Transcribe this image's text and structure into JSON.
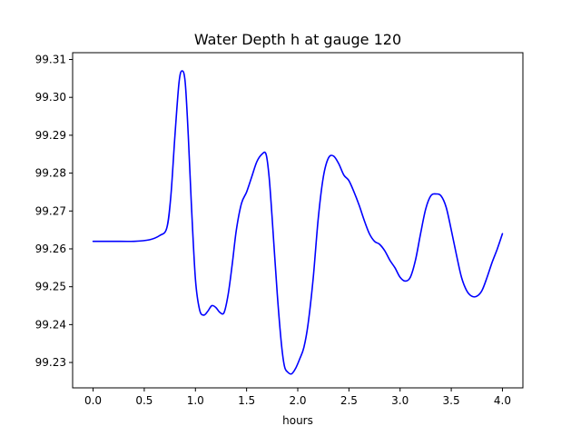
{
  "chart_data": {
    "type": "line",
    "title": "Water Depth h at gauge 120",
    "xlabel": "hours",
    "ylabel": "",
    "xlim": [
      -0.2,
      4.2
    ],
    "ylim": [
      99.2233,
      99.3118
    ],
    "xticks": [
      0.0,
      0.5,
      1.0,
      1.5,
      2.0,
      2.5,
      3.0,
      3.5,
      4.0
    ],
    "xtick_labels": [
      "0.0",
      "0.5",
      "1.0",
      "1.5",
      "2.0",
      "2.5",
      "3.0",
      "3.5",
      "4.0"
    ],
    "yticks": [
      99.23,
      99.24,
      99.25,
      99.26,
      99.27,
      99.28,
      99.29,
      99.3,
      99.31
    ],
    "ytick_labels": [
      "99.23",
      "99.24",
      "99.25",
      "99.26",
      "99.27",
      "99.28",
      "99.29",
      "99.30",
      "99.31"
    ],
    "grid": false,
    "color": "#0000ff",
    "series": [
      {
        "name": "",
        "x": [
          0.0,
          0.2,
          0.4,
          0.55,
          0.65,
          0.72,
          0.76,
          0.8,
          0.84,
          0.87,
          0.9,
          0.93,
          0.96,
          1.0,
          1.04,
          1.08,
          1.12,
          1.16,
          1.2,
          1.24,
          1.28,
          1.32,
          1.36,
          1.4,
          1.45,
          1.5,
          1.55,
          1.6,
          1.65,
          1.69,
          1.72,
          1.75,
          1.8,
          1.84,
          1.87,
          1.9,
          1.94,
          1.98,
          2.02,
          2.06,
          2.1,
          2.15,
          2.2,
          2.25,
          2.3,
          2.35,
          2.4,
          2.45,
          2.5,
          2.55,
          2.6,
          2.65,
          2.7,
          2.75,
          2.8,
          2.85,
          2.9,
          2.95,
          3.0,
          3.05,
          3.1,
          3.15,
          3.2,
          3.25,
          3.3,
          3.35,
          3.4,
          3.45,
          3.5,
          3.55,
          3.6,
          3.65,
          3.7,
          3.75,
          3.8,
          3.85,
          3.9,
          3.95,
          4.0
        ],
        "y": [
          99.262,
          99.262,
          99.262,
          99.2624,
          99.2635,
          99.2655,
          99.274,
          99.29,
          99.304,
          99.307,
          99.304,
          99.29,
          99.272,
          99.252,
          99.244,
          99.2425,
          99.2435,
          99.245,
          99.2445,
          99.2432,
          99.2432,
          99.248,
          99.256,
          99.265,
          99.272,
          99.275,
          99.279,
          99.283,
          99.285,
          99.285,
          99.279,
          99.268,
          99.248,
          99.235,
          99.229,
          99.2275,
          99.227,
          99.2285,
          99.231,
          99.234,
          99.24,
          99.252,
          99.268,
          99.279,
          99.284,
          99.2845,
          99.2825,
          99.2795,
          99.278,
          99.275,
          99.2715,
          99.2675,
          99.264,
          99.262,
          99.2612,
          99.2595,
          99.257,
          99.255,
          99.2525,
          99.2515,
          99.2525,
          99.257,
          99.264,
          99.2705,
          99.274,
          99.2745,
          99.274,
          99.271,
          99.265,
          99.2585,
          99.2525,
          99.249,
          99.2475,
          99.2475,
          99.249,
          99.2525,
          99.2565,
          99.26,
          99.264
        ]
      }
    ]
  }
}
